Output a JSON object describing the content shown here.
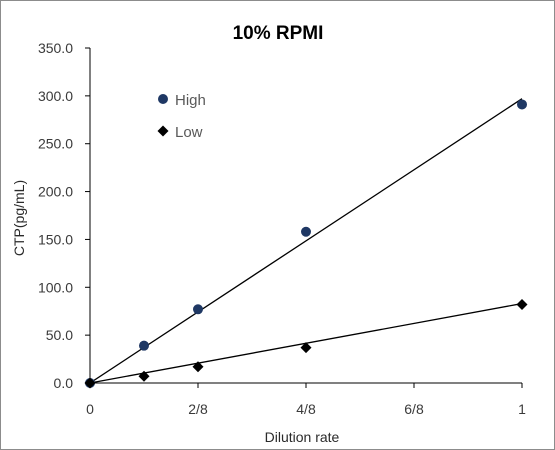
{
  "chart_data": {
    "type": "scatter",
    "title": "10% RPMI",
    "xlabel": "Dilution rate",
    "ylabel": "CTP(pg/mL)",
    "xlim": [
      0,
      1
    ],
    "ylim": [
      0,
      350
    ],
    "x_ticks": [
      {
        "value": 0,
        "label": "0"
      },
      {
        "value": 0.25,
        "label": "2/8"
      },
      {
        "value": 0.5,
        "label": "4/8"
      },
      {
        "value": 0.75,
        "label": "6/8"
      },
      {
        "value": 1,
        "label": "1"
      }
    ],
    "y_ticks": [
      {
        "value": 0,
        "label": "0.0"
      },
      {
        "value": 50,
        "label": "50.0"
      },
      {
        "value": 100,
        "label": "100.0"
      },
      {
        "value": 150,
        "label": "150.0"
      },
      {
        "value": 200,
        "label": "200.0"
      },
      {
        "value": 250,
        "label": "250.0"
      },
      {
        "value": 300,
        "label": "300.0"
      },
      {
        "value": 350,
        "label": "350.0"
      }
    ],
    "grid": false,
    "legend_position": "upper-left",
    "series": [
      {
        "name": "High",
        "marker": "circle",
        "color": "#1f3864",
        "x": [
          0,
          0.125,
          0.25,
          0.5,
          1
        ],
        "y": [
          0,
          39,
          77,
          158,
          291
        ],
        "trendline": {
          "x": [
            0,
            1
          ],
          "y": [
            0,
            297
          ]
        }
      },
      {
        "name": "Low",
        "marker": "diamond",
        "color": "#000000",
        "x": [
          0,
          0.125,
          0.25,
          0.5,
          1
        ],
        "y": [
          0,
          7,
          17,
          37,
          82
        ],
        "trendline": {
          "x": [
            0,
            1
          ],
          "y": [
            0,
            83
          ]
        }
      }
    ]
  }
}
